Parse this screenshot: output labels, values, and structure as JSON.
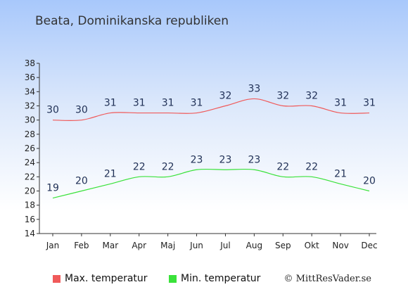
{
  "colors": {
    "max": "#f05a5a",
    "min": "#3ae23a"
  },
  "chart_data": {
    "type": "line",
    "title": "Beata, Dominikanska republiken",
    "categories": [
      "Jan",
      "Feb",
      "Mar",
      "Apr",
      "Maj",
      "Jun",
      "Jul",
      "Aug",
      "Sep",
      "Okt",
      "Nov",
      "Dec"
    ],
    "series": [
      {
        "name": "Max. temperatur",
        "values": [
          30,
          30,
          31,
          31,
          31,
          31,
          32,
          33,
          32,
          32,
          31,
          31
        ]
      },
      {
        "name": "Min. temperatur",
        "values": [
          19,
          20,
          21,
          22,
          22,
          23,
          23,
          23,
          22,
          22,
          21,
          20
        ]
      }
    ],
    "ylim": [
      14,
      38
    ],
    "yticks": [
      14,
      16,
      18,
      20,
      22,
      24,
      26,
      28,
      30,
      32,
      34,
      36,
      38
    ],
    "legend_position": "bottom",
    "grid": false
  },
  "credit": "© MittResVader.se"
}
